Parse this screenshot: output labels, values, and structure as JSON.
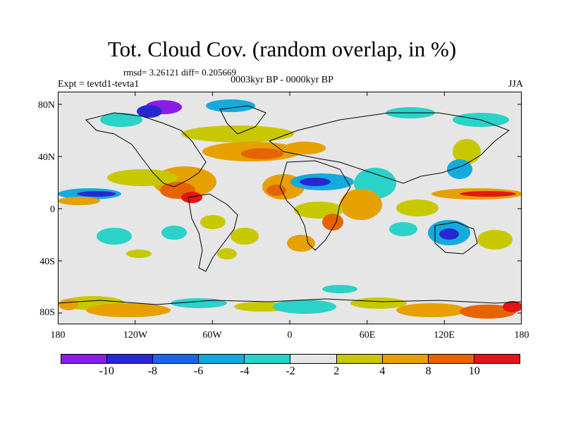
{
  "title": "Tot. Cloud Cov. (random overlap, in %)",
  "stats_text": "rmsd= 3.26121 diff= 0.205669",
  "subtitle": "0003kyr BP - 0000kyr BP",
  "expt_label": "Expt = tevtd1-tevta1",
  "season": "JJA",
  "y_ticks": [
    "80N",
    "40N",
    "0",
    "40S",
    "80S"
  ],
  "x_ticks": [
    "180",
    "120W",
    "60W",
    "0",
    "60E",
    "120E",
    "180"
  ],
  "colorbar": {
    "colors": [
      "#8a1de6",
      "#2828d2",
      "#1e64e6",
      "#14aadc",
      "#2ad2c8",
      "#e6e6e6",
      "#c8c800",
      "#e6a000",
      "#e66400",
      "#e61414"
    ],
    "labels": [
      "-10",
      "-8",
      "-6",
      "-4",
      "-2",
      "2",
      "4",
      "8",
      "10"
    ]
  },
  "palette": {
    "neutral": "#e6e6e6",
    "cyan": "#2ad2c8",
    "lightblue": "#14aadc",
    "blue": "#1e64e6",
    "darkblue": "#2828d2",
    "purple": "#8a1de6",
    "yellow": "#c8c800",
    "orange": "#e6a000",
    "darkorange": "#e66400",
    "red": "#e61414"
  }
}
